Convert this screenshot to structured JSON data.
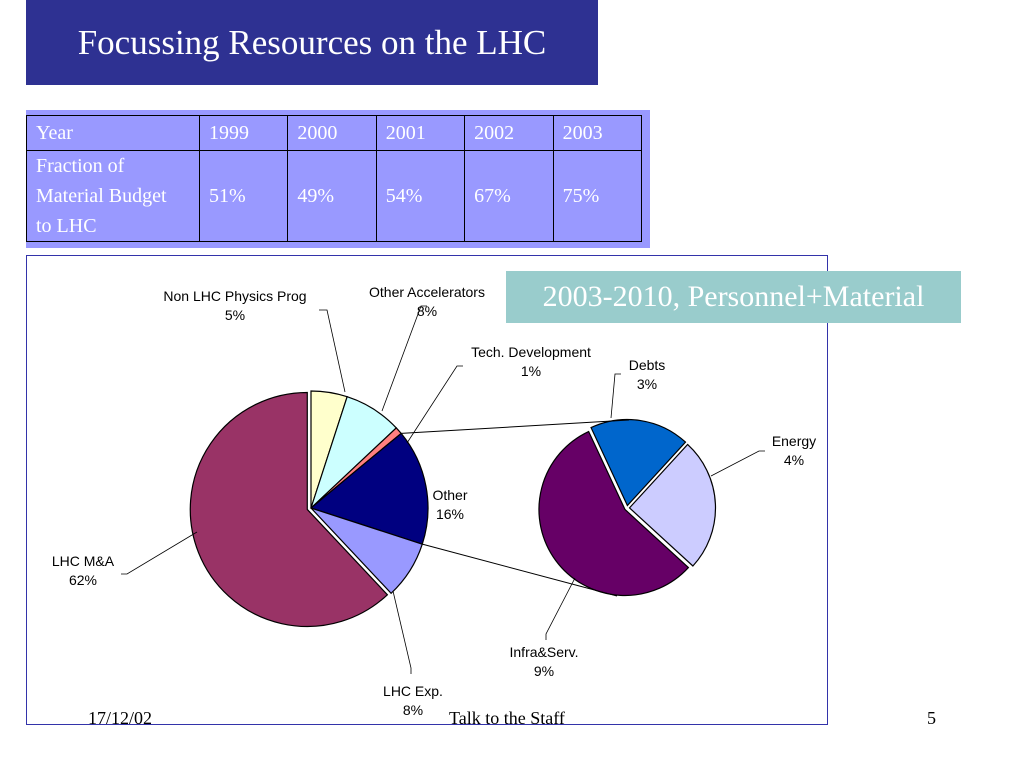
{
  "slide": {
    "title": "Focussing Resources on the LHC",
    "period_label": "2003-2010, Personnel+Material",
    "footer_date": "17/12/02",
    "footer_center": "Talk to the Staff",
    "page_number": "5"
  },
  "table": {
    "header": [
      "Year",
      "1999",
      "2000",
      "2001",
      "2002",
      "2003"
    ],
    "row_label_lines": [
      "Fraction of",
      "Material Budget",
      "to LHC"
    ],
    "values": [
      "51%",
      "49%",
      "54%",
      "67%",
      "75%"
    ]
  },
  "chart_data": {
    "type": "pie",
    "main_pie": [
      {
        "label": "Non LHC Physics Prog",
        "percent_label": "5%",
        "value": 5,
        "color": "#ffffcc"
      },
      {
        "label": "Other Accelerators",
        "percent_label": "8%",
        "value": 8,
        "color": "#ccffff"
      },
      {
        "label": "Tech. Development",
        "percent_label": "1%",
        "value": 1,
        "color": "#ff8080"
      },
      {
        "label": "Other",
        "percent_label": "16%",
        "value": 16,
        "color": "#000080"
      },
      {
        "label": "LHC Exp.",
        "percent_label": "8%",
        "value": 8,
        "color": "#9999ff"
      },
      {
        "label": "LHC M&A",
        "percent_label": "62%",
        "value": 62,
        "color": "#993366"
      }
    ],
    "breakdown_of": "Other",
    "secondary_pie": [
      {
        "label": "Debts",
        "percent_label": "3%",
        "value": 3,
        "color": "#0066cc"
      },
      {
        "label": "Energy",
        "percent_label": "4%",
        "value": 4,
        "color": "#ccccff"
      },
      {
        "label": "Infra&Serv.",
        "percent_label": "9%",
        "value": 9,
        "color": "#660066"
      }
    ]
  }
}
